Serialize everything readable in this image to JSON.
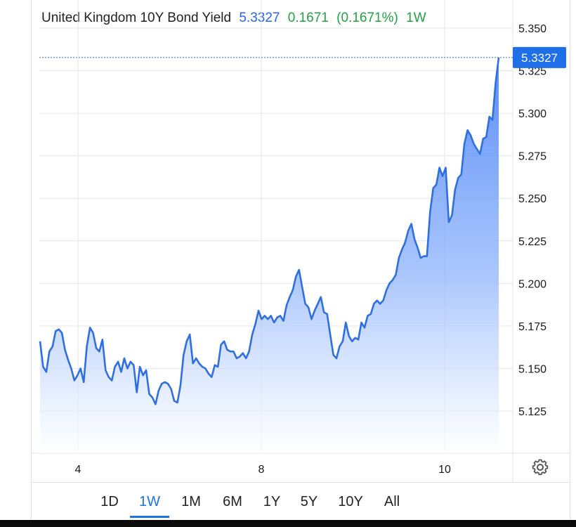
{
  "header": {
    "instrument": "United Kingdom 10Y Bond Yield",
    "price": "5.3327",
    "change": "0.1671",
    "change_percent": "(0.1671%)",
    "range_label": "1W"
  },
  "colors": {
    "price": "#2962ff",
    "change": "#21a344",
    "line": "#2f6fe0",
    "area_top": "#4f86f7",
    "area_bottom": "#ffffff",
    "last_price_badge": "#1f6fe8",
    "active_period": "#1a73e8"
  },
  "last_price_badge": "5.3327",
  "periods": [
    "1D",
    "1W",
    "1M",
    "6M",
    "1Y",
    "5Y",
    "10Y",
    "All"
  ],
  "active_period": "1W",
  "settings_icon": "gear-icon",
  "chart_data": {
    "type": "area",
    "title": "United Kingdom 10Y Bond Yield",
    "x_ticks": [
      "4",
      "8",
      "10"
    ],
    "y_ticks": [
      "5.125",
      "5.150",
      "5.175",
      "5.200",
      "5.225",
      "5.250",
      "5.275",
      "5.300",
      "5.325",
      "5.350"
    ],
    "ylim": [
      5.1,
      5.36
    ],
    "last_value": 5.3327,
    "grid": true,
    "legend": "none",
    "series": [
      {
        "values": [
          5.166,
          5.151,
          5.148,
          5.16,
          5.163,
          5.172,
          5.173,
          5.171,
          5.161,
          5.155,
          5.15,
          5.143,
          5.146,
          5.15,
          5.142,
          5.163,
          5.174,
          5.171,
          5.162,
          5.16,
          5.167,
          5.149,
          5.145,
          5.143,
          5.151,
          5.154,
          5.148,
          5.156,
          5.15,
          5.154,
          5.152,
          5.136,
          5.151,
          5.146,
          5.149,
          5.135,
          5.133,
          5.129,
          5.137,
          5.141,
          5.142,
          5.141,
          5.138,
          5.131,
          5.13,
          5.14,
          5.158,
          5.166,
          5.17,
          5.153,
          5.156,
          5.153,
          5.151,
          5.15,
          5.147,
          5.145,
          5.152,
          5.151,
          5.164,
          5.166,
          5.161,
          5.16,
          5.16,
          5.156,
          5.157,
          5.159,
          5.156,
          5.16,
          5.17,
          5.176,
          5.184,
          5.179,
          5.181,
          5.179,
          5.181,
          5.177,
          5.18,
          5.181,
          5.178,
          5.187,
          5.192,
          5.196,
          5.204,
          5.208,
          5.198,
          5.188,
          5.186,
          5.179,
          5.184,
          5.188,
          5.192,
          5.183,
          5.182,
          5.17,
          5.158,
          5.156,
          5.163,
          5.166,
          5.177,
          5.169,
          5.166,
          5.168,
          5.167,
          5.177,
          5.174,
          5.181,
          5.182,
          5.188,
          5.19,
          5.188,
          5.19,
          5.196,
          5.2,
          5.202,
          5.205,
          5.215,
          5.22,
          5.224,
          5.231,
          5.235,
          5.226,
          5.221,
          5.215,
          5.216,
          5.216,
          5.242,
          5.256,
          5.258,
          5.268,
          5.263,
          5.268,
          5.236,
          5.24,
          5.255,
          5.262,
          5.264,
          5.282,
          5.29,
          5.287,
          5.282,
          5.279,
          5.276,
          5.285,
          5.286,
          5.298,
          5.296,
          5.318,
          5.3327
        ]
      }
    ]
  }
}
